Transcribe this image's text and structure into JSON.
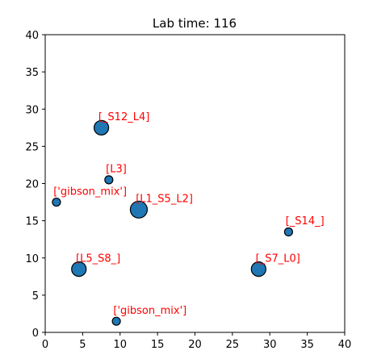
{
  "chart_data": {
    "type": "scatter",
    "title": "Lab time: 116",
    "xlabel": "",
    "ylabel": "",
    "xlim": [
      0,
      40
    ],
    "ylim": [
      0,
      40
    ],
    "xticks": [
      0,
      5,
      10,
      15,
      20,
      25,
      30,
      35,
      40
    ],
    "yticks": [
      0,
      5,
      10,
      15,
      20,
      25,
      30,
      35,
      40
    ],
    "grid": false,
    "marker_color": "#1f77b4",
    "marker_edge_color": "#000000",
    "annotation_color": "#ff0000",
    "points": [
      {
        "x": 7.5,
        "y": 27.5,
        "size": "large",
        "label": "[_S12_L4]"
      },
      {
        "x": 8.5,
        "y": 20.5,
        "size": "small",
        "label": "[L3]"
      },
      {
        "x": 1.5,
        "y": 17.5,
        "size": "small",
        "label": "['gibson_mix']"
      },
      {
        "x": 12.5,
        "y": 16.5,
        "size": "xlarge",
        "label": "[L1_S5_L2]"
      },
      {
        "x": 32.5,
        "y": 13.5,
        "size": "small",
        "label": "[_S14_]"
      },
      {
        "x": 4.5,
        "y": 8.5,
        "size": "large",
        "label": "[L5_S8_]"
      },
      {
        "x": 28.5,
        "y": 8.5,
        "size": "large",
        "label": "[_S7_L0]"
      },
      {
        "x": 9.5,
        "y": 1.5,
        "size": "small",
        "label": "['gibson_mix']"
      }
    ]
  }
}
